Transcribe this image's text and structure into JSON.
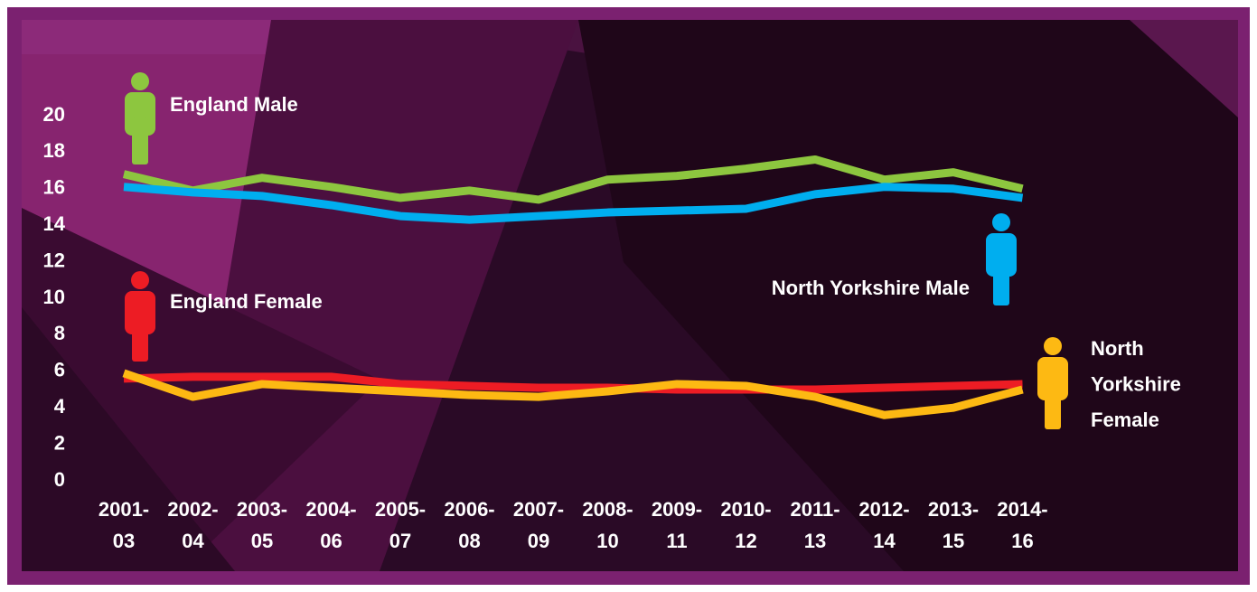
{
  "chart_data": {
    "type": "line",
    "categories": [
      "2001-03",
      "2002-04",
      "2003-05",
      "2004-06",
      "2005-07",
      "2006-08",
      "2007-09",
      "2008-10",
      "2009-11",
      "2010-12",
      "2011-13",
      "2012-14",
      "2013-15",
      "2014-16"
    ],
    "series": [
      {
        "name": "England Male",
        "color": "#8dc63f",
        "values": [
          16.8,
          15.9,
          16.6,
          16.1,
          15.5,
          15.9,
          15.4,
          16.5,
          16.7,
          17.1,
          17.6,
          16.5,
          16.9,
          16.0
        ]
      },
      {
        "name": "North Yorkshire Male",
        "color": "#00aeef",
        "values": [
          16.1,
          15.8,
          15.6,
          15.1,
          14.5,
          14.3,
          14.5,
          14.7,
          14.8,
          14.9,
          15.7,
          16.1,
          16.0,
          15.5
        ]
      },
      {
        "name": "England Female",
        "color": "#ed1c24",
        "values": [
          5.6,
          5.7,
          5.7,
          5.7,
          5.3,
          5.2,
          5.1,
          5.1,
          5.0,
          5.0,
          5.0,
          5.1,
          5.2,
          5.3
        ]
      },
      {
        "name": "North Yorkshire Female",
        "color": "#fdb913",
        "values": [
          5.9,
          4.6,
          5.3,
          5.1,
          4.9,
          4.7,
          4.6,
          4.9,
          5.3,
          5.2,
          4.6,
          3.6,
          4.0,
          5.0
        ]
      }
    ],
    "ylim": [
      0,
      20
    ],
    "yticks": [
      0,
      2,
      4,
      6,
      8,
      10,
      12,
      14,
      16,
      18,
      20
    ],
    "grid": false
  }
}
